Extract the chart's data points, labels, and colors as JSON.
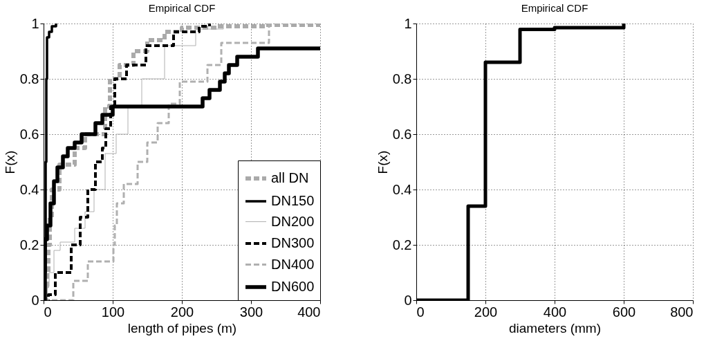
{
  "chart_data": [
    {
      "type": "step",
      "title": "Empirical CDF",
      "xlabel": "length of pipes (m)",
      "ylabel": "F(x)",
      "xlim": [
        0,
        400
      ],
      "xticks": [
        0,
        100,
        200,
        300,
        400
      ],
      "ylim": [
        0,
        1
      ],
      "yticks": [
        0,
        0.2,
        0.4,
        0.6,
        0.8,
        1
      ],
      "grid": true,
      "legend": "bottom right",
      "series": [
        {
          "name": "all DN",
          "color": "#aaaaaa",
          "line_style": "dashed",
          "x": [
            0,
            3,
            5,
            7,
            9,
            12,
            23,
            45,
            60,
            89,
            96,
            110,
            130,
            150,
            175,
            200,
            250,
            320,
            400
          ],
          "values": [
            0,
            0.05,
            0.1,
            0.2,
            0.3,
            0.4,
            0.49,
            0.55,
            0.6,
            0.7,
            0.8,
            0.85,
            0.9,
            0.94,
            0.97,
            0.985,
            0.99,
            0.995,
            1
          ]
        },
        {
          "name": "DN150",
          "color": "#000000",
          "line_style": "solid",
          "x": [
            0,
            2,
            3,
            4,
            5,
            8,
            12,
            18
          ],
          "values": [
            0,
            0.1,
            0.5,
            0.8,
            0.95,
            0.97,
            0.99,
            1
          ]
        },
        {
          "name": "DN200",
          "color": "#b0b0b0",
          "line_style": "solid",
          "x": [
            0,
            4,
            8,
            15,
            24,
            45,
            60,
            73,
            89,
            105,
            122,
            142,
            175,
            220,
            260
          ],
          "values": [
            0,
            0.05,
            0.1,
            0.18,
            0.21,
            0.26,
            0.32,
            0.4,
            0.53,
            0.6,
            0.7,
            0.8,
            0.92,
            0.98,
            1
          ]
        },
        {
          "name": "DN300",
          "color": "#000000",
          "line_style": "dashed",
          "x": [
            0,
            7,
            17,
            40,
            53,
            64,
            75,
            85,
            90,
            97,
            103,
            120,
            148,
            188,
            225,
            240
          ],
          "values": [
            0,
            0.02,
            0.1,
            0.2,
            0.3,
            0.4,
            0.5,
            0.55,
            0.62,
            0.7,
            0.8,
            0.85,
            0.92,
            0.97,
            0.99,
            1
          ]
        },
        {
          "name": "DN400",
          "color": "#b0b0b0",
          "line_style": "dashed",
          "x": [
            0,
            43,
            64,
            101,
            103,
            106,
            116,
            136,
            150,
            165,
            181,
            197,
            237,
            257,
            326
          ],
          "values": [
            0,
            0.07,
            0.14,
            0.2,
            0.27,
            0.35,
            0.42,
            0.5,
            0.57,
            0.64,
            0.71,
            0.79,
            0.85,
            0.93,
            1
          ]
        },
        {
          "name": "DN600",
          "color": "#000000",
          "line_style": "solid",
          "x": [
            0,
            2,
            5,
            10,
            15,
            20,
            28,
            35,
            45,
            55,
            75,
            85,
            100,
            230,
            240,
            255,
            262,
            268,
            280,
            310,
            400
          ],
          "values": [
            0,
            0.22,
            0.27,
            0.35,
            0.43,
            0.48,
            0.52,
            0.55,
            0.57,
            0.6,
            0.64,
            0.67,
            0.7,
            0.73,
            0.76,
            0.79,
            0.82,
            0.85,
            0.88,
            0.91,
            0.91
          ]
        }
      ]
    },
    {
      "type": "step",
      "title": "Empirical CDF",
      "xlabel": "diameters (mm)",
      "ylabel": "F(x)",
      "xlim": [
        0,
        800
      ],
      "xticks": [
        0,
        200,
        400,
        600,
        800
      ],
      "ylim": [
        0,
        1
      ],
      "yticks": [
        0,
        0.2,
        0.4,
        0.6,
        0.8,
        1
      ],
      "grid": true,
      "series": [
        {
          "color": "#000000",
          "line_style": "solid",
          "x": [
            0,
            150,
            200,
            300,
            400,
            600
          ],
          "values": [
            0,
            0.34,
            0.86,
            0.979,
            0.985,
            1
          ]
        }
      ]
    }
  ]
}
